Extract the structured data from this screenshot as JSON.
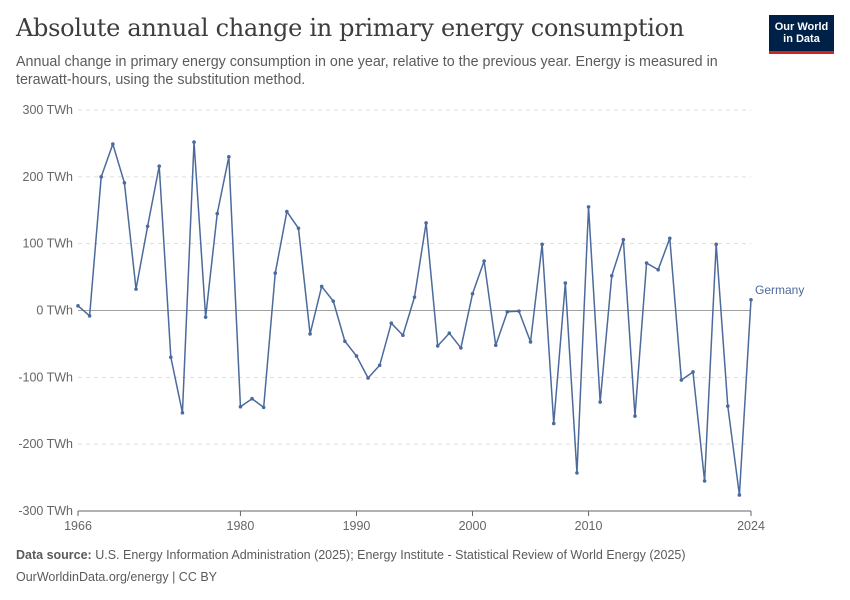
{
  "header": {
    "title": "Absolute annual change in primary energy consumption",
    "subtitle": "Annual change in primary energy consumption in one year, relative to the previous year. Energy is measured in terawatt-hours, using the substitution method.",
    "logo_line1": "Our World",
    "logo_line2": "in Data"
  },
  "footer": {
    "source_label": "Data source:",
    "source_text": "U.S. Energy Information Administration (2025); Energy Institute - Statistical Review of World Energy (2025)",
    "url_text": "OurWorldinData.org/energy | CC BY"
  },
  "colors": {
    "series": "#4c6a9c",
    "grid": "#dddddd",
    "zero_line": "#a1a1a1",
    "axis": "#666666"
  },
  "chart_data": {
    "type": "line",
    "title": "Absolute annual change in primary energy consumption",
    "xlabel": "",
    "ylabel": "",
    "xlim": [
      1966,
      2024
    ],
    "ylim": [
      -300,
      300
    ],
    "x_ticks": [
      1966,
      1980,
      1990,
      2000,
      2010,
      2024
    ],
    "y_ticks": [
      300,
      200,
      100,
      0,
      -100,
      -200,
      -300
    ],
    "y_tick_labels": [
      "300 TWh",
      "200 TWh",
      "100 TWh",
      "0 TWh",
      "-100 TWh",
      "-200 TWh",
      "-300 TWh"
    ],
    "grid": true,
    "legend": "end-of-line label",
    "series": [
      {
        "name": "Germany",
        "x": [
          1966,
          1967,
          1968,
          1969,
          1970,
          1971,
          1972,
          1973,
          1974,
          1975,
          1976,
          1977,
          1978,
          1979,
          1980,
          1981,
          1982,
          1983,
          1984,
          1985,
          1986,
          1987,
          1988,
          1989,
          1990,
          1991,
          1992,
          1993,
          1994,
          1995,
          1996,
          1997,
          1998,
          1999,
          2000,
          2001,
          2002,
          2003,
          2004,
          2005,
          2006,
          2007,
          2008,
          2009,
          2010,
          2011,
          2012,
          2013,
          2014,
          2015,
          2016,
          2017,
          2018,
          2019,
          2020,
          2021,
          2022,
          2023,
          2024
        ],
        "values": [
          7,
          -8,
          200,
          249,
          191,
          32,
          126,
          216,
          -70,
          -153,
          252,
          -10,
          145,
          230,
          -144,
          -132,
          -145,
          56,
          148,
          123,
          -35,
          36,
          14,
          -46,
          -68,
          -101,
          -82,
          -19,
          -37,
          20,
          131,
          -53,
          -34,
          -56,
          25,
          74,
          -52,
          -2,
          -1,
          -47,
          99,
          -169,
          41,
          -243,
          155,
          -137,
          52,
          106,
          -158,
          71,
          61,
          108,
          -104,
          -92,
          -255,
          99,
          -143,
          -276,
          16
        ]
      }
    ]
  }
}
